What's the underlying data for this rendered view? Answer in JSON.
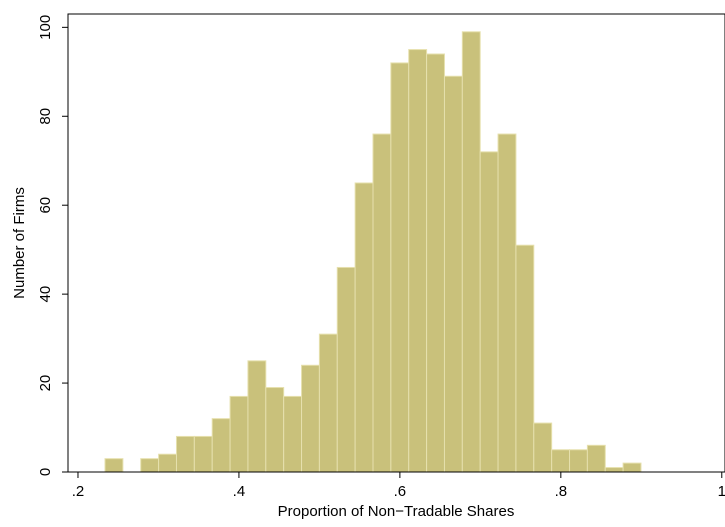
{
  "chart_data": {
    "type": "histogram",
    "xlabel": "Proportion of Non−Tradable Shares",
    "ylabel": "Number of Firms",
    "bins": [
      0.2336,
      0.2558,
      0.278,
      0.3002,
      0.3224,
      0.3446,
      0.3668,
      0.389,
      0.4112,
      0.4334,
      0.4556,
      0.4778,
      0.5,
      0.5222,
      0.5444,
      0.5666,
      0.5888,
      0.611,
      0.6332,
      0.6554,
      0.6776,
      0.6998,
      0.722,
      0.7442,
      0.7664,
      0.7886,
      0.8108,
      0.833,
      0.8552,
      0.8774,
      0.8996
    ],
    "values": [
      3,
      0,
      3,
      4,
      8,
      8,
      12,
      17,
      25,
      19,
      17,
      24,
      31,
      46,
      65,
      76,
      92,
      95,
      94,
      89,
      99,
      72,
      76,
      51,
      11,
      5,
      5,
      6,
      1,
      2
    ],
    "color": "#c9c17b",
    "xlim": [
      0.1876,
      1.004
    ],
    "ylim": [
      0,
      103
    ],
    "xticks": [
      {
        "value": 0.2,
        "label": ".2"
      },
      {
        "value": 0.4,
        "label": ".4"
      },
      {
        "value": 0.6,
        "label": ".6"
      },
      {
        "value": 0.8,
        "label": ".8"
      },
      1
    ],
    "yticks": [
      0,
      20,
      40,
      60,
      80,
      100
    ]
  }
}
